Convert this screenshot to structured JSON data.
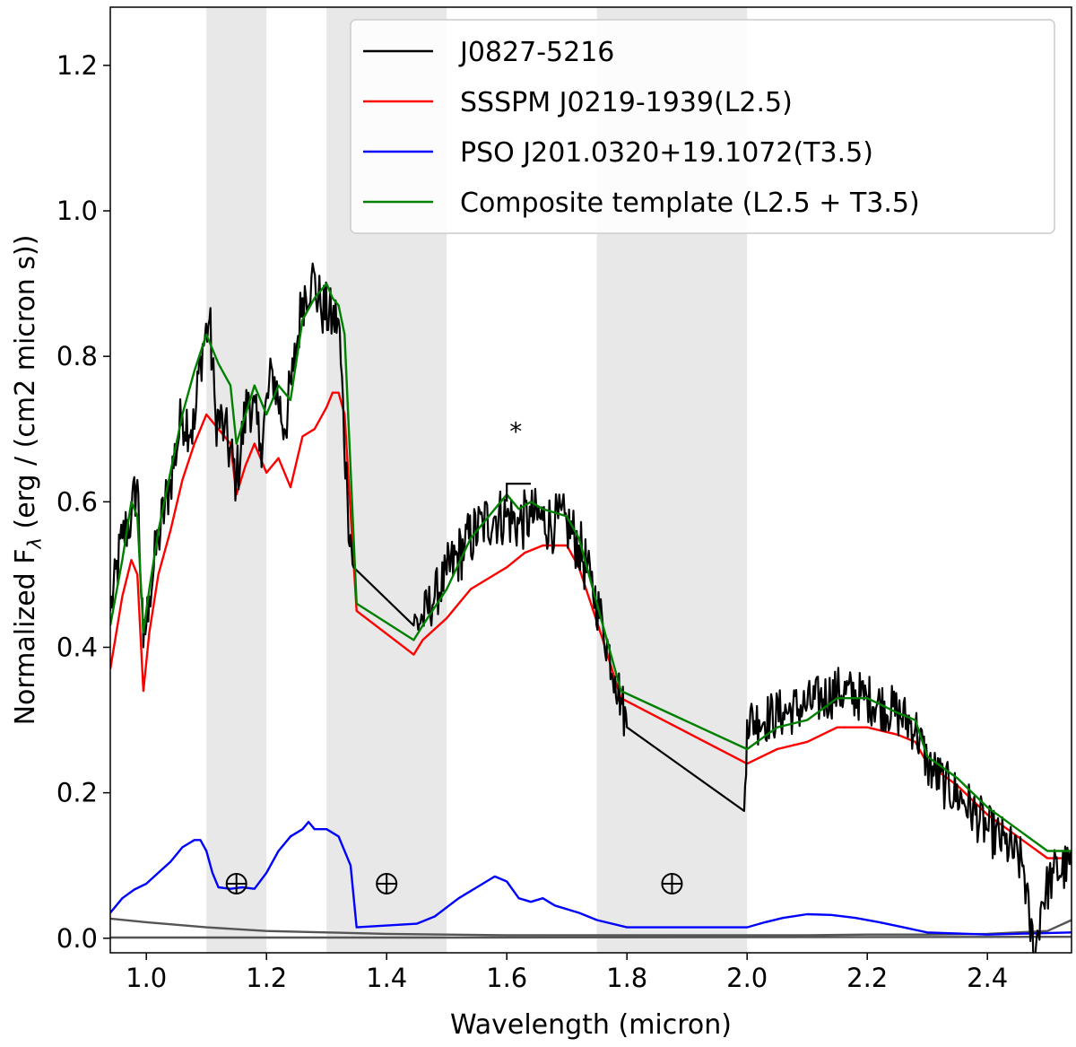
{
  "chart_data": {
    "type": "line",
    "xlabel": "Wavelength (micron)",
    "ylabel_parts": [
      "Normalized F",
      "λ",
      " (erg / (cm2 micron s))"
    ],
    "xlim": [
      0.94,
      2.54
    ],
    "ylim": [
      -0.02,
      1.28
    ],
    "x_ticks": [
      1.0,
      1.2,
      1.4,
      1.6,
      1.8,
      2.0,
      2.2,
      2.4
    ],
    "x_tick_labels": [
      "1.0",
      "1.2",
      "1.4",
      "1.6",
      "1.8",
      "2.0",
      "2.2",
      "2.4"
    ],
    "y_ticks": [
      0.0,
      0.2,
      0.4,
      0.6,
      0.8,
      1.0,
      1.2
    ],
    "y_tick_labels": [
      "0.0",
      "0.2",
      "0.4",
      "0.6",
      "0.8",
      "1.0",
      "1.2"
    ],
    "shaded_regions": [
      [
        1.1,
        1.2
      ],
      [
        1.3,
        1.5
      ],
      [
        1.75,
        2.0
      ]
    ],
    "shade_color": "#e8e8e8",
    "telluric_markers": [
      {
        "symbol": "⊕",
        "x": 1.15,
        "y": 0.075
      },
      {
        "symbol": "⊕",
        "x": 1.4,
        "y": 0.075
      },
      {
        "symbol": "⊕",
        "x": 1.875,
        "y": 0.075
      }
    ],
    "annotation": {
      "text": "*",
      "x": 1.615,
      "y": 0.685,
      "bracket": [
        [
          1.6,
          0.6
        ],
        [
          1.6,
          0.625
        ],
        [
          1.64,
          0.625
        ]
      ]
    },
    "legend": {
      "position": "upper right"
    },
    "series": [
      {
        "name": "J0827-5216",
        "color": "#000000",
        "noisy": true,
        "points": [
          [
            0.94,
            0.45
          ],
          [
            0.96,
            0.55
          ],
          [
            0.975,
            0.58
          ],
          [
            0.985,
            0.63
          ],
          [
            0.995,
            0.4
          ],
          [
            1.005,
            0.47
          ],
          [
            1.02,
            0.55
          ],
          [
            1.04,
            0.63
          ],
          [
            1.06,
            0.72
          ],
          [
            1.08,
            0.7
          ],
          [
            1.09,
            0.8
          ],
          [
            1.105,
            0.85
          ],
          [
            1.115,
            0.72
          ],
          [
            1.13,
            0.7
          ],
          [
            1.15,
            0.63
          ],
          [
            1.17,
            0.75
          ],
          [
            1.19,
            0.68
          ],
          [
            1.21,
            0.78
          ],
          [
            1.23,
            0.7
          ],
          [
            1.245,
            0.78
          ],
          [
            1.26,
            0.88
          ],
          [
            1.275,
            0.91
          ],
          [
            1.29,
            0.87
          ],
          [
            1.31,
            0.85
          ],
          [
            1.32,
            0.85
          ],
          [
            1.335,
            0.6
          ],
          [
            1.345,
            0.51
          ],
          [
            1.445,
            0.43
          ],
          [
            1.46,
            0.44
          ],
          [
            1.48,
            0.47
          ],
          [
            1.5,
            0.5
          ],
          [
            1.53,
            0.54
          ],
          [
            1.56,
            0.57
          ],
          [
            1.58,
            0.58
          ],
          [
            1.6,
            0.58
          ],
          [
            1.62,
            0.57
          ],
          [
            1.64,
            0.58
          ],
          [
            1.66,
            0.575
          ],
          [
            1.68,
            0.57
          ],
          [
            1.7,
            0.57
          ],
          [
            1.72,
            0.54
          ],
          [
            1.74,
            0.49
          ],
          [
            1.76,
            0.43
          ],
          [
            1.78,
            0.36
          ],
          [
            1.79,
            0.33
          ],
          [
            1.8,
            0.29
          ],
          [
            1.995,
            0.175
          ],
          [
            2.0,
            0.3
          ],
          [
            2.02,
            0.3
          ],
          [
            2.06,
            0.31
          ],
          [
            2.1,
            0.32
          ],
          [
            2.15,
            0.34
          ],
          [
            2.2,
            0.33
          ],
          [
            2.25,
            0.31
          ],
          [
            2.28,
            0.29
          ],
          [
            2.3,
            0.24
          ],
          [
            2.33,
            0.21
          ],
          [
            2.36,
            0.19
          ],
          [
            2.4,
            0.15
          ],
          [
            2.43,
            0.13
          ],
          [
            2.46,
            0.1
          ],
          [
            2.47,
            0.02
          ],
          [
            2.48,
            -0.02
          ],
          [
            2.49,
            0.05
          ],
          [
            2.51,
            0.09
          ],
          [
            2.54,
            0.1
          ]
        ]
      },
      {
        "name": "SSSPM J0219-1939(L2.5)",
        "color": "#ff0000",
        "noisy": false,
        "points": [
          [
            0.94,
            0.37
          ],
          [
            0.96,
            0.47
          ],
          [
            0.975,
            0.52
          ],
          [
            0.985,
            0.5
          ],
          [
            0.995,
            0.34
          ],
          [
            1.005,
            0.42
          ],
          [
            1.02,
            0.5
          ],
          [
            1.04,
            0.56
          ],
          [
            1.06,
            0.63
          ],
          [
            1.08,
            0.68
          ],
          [
            1.1,
            0.72
          ],
          [
            1.12,
            0.7
          ],
          [
            1.14,
            0.68
          ],
          [
            1.15,
            0.61
          ],
          [
            1.165,
            0.65
          ],
          [
            1.18,
            0.68
          ],
          [
            1.2,
            0.64
          ],
          [
            1.22,
            0.66
          ],
          [
            1.24,
            0.62
          ],
          [
            1.26,
            0.69
          ],
          [
            1.28,
            0.7
          ],
          [
            1.3,
            0.73
          ],
          [
            1.31,
            0.75
          ],
          [
            1.32,
            0.75
          ],
          [
            1.33,
            0.72
          ],
          [
            1.35,
            0.45
          ],
          [
            1.445,
            0.39
          ],
          [
            1.46,
            0.41
          ],
          [
            1.5,
            0.44
          ],
          [
            1.54,
            0.48
          ],
          [
            1.58,
            0.5
          ],
          [
            1.6,
            0.51
          ],
          [
            1.63,
            0.53
          ],
          [
            1.66,
            0.54
          ],
          [
            1.7,
            0.54
          ],
          [
            1.72,
            0.51
          ],
          [
            1.74,
            0.46
          ],
          [
            1.76,
            0.41
          ],
          [
            1.79,
            0.33
          ],
          [
            2.0,
            0.24
          ],
          [
            2.05,
            0.26
          ],
          [
            2.1,
            0.27
          ],
          [
            2.15,
            0.29
          ],
          [
            2.2,
            0.29
          ],
          [
            2.25,
            0.28
          ],
          [
            2.28,
            0.27
          ],
          [
            2.3,
            0.24
          ],
          [
            2.35,
            0.21
          ],
          [
            2.4,
            0.17
          ],
          [
            2.45,
            0.14
          ],
          [
            2.5,
            0.11
          ],
          [
            2.54,
            0.11
          ]
        ]
      },
      {
        "name": "PSO J201.0320+19.1072(T3.5)",
        "color": "#0000ff",
        "noisy": false,
        "points": [
          [
            0.94,
            0.035
          ],
          [
            0.96,
            0.055
          ],
          [
            0.98,
            0.067
          ],
          [
            1.0,
            0.075
          ],
          [
            1.02,
            0.09
          ],
          [
            1.04,
            0.105
          ],
          [
            1.06,
            0.125
          ],
          [
            1.08,
            0.135
          ],
          [
            1.09,
            0.135
          ],
          [
            1.1,
            0.12
          ],
          [
            1.11,
            0.09
          ],
          [
            1.12,
            0.07
          ],
          [
            1.14,
            0.068
          ],
          [
            1.16,
            0.07
          ],
          [
            1.18,
            0.068
          ],
          [
            1.2,
            0.09
          ],
          [
            1.22,
            0.12
          ],
          [
            1.24,
            0.14
          ],
          [
            1.26,
            0.15
          ],
          [
            1.27,
            0.16
          ],
          [
            1.28,
            0.15
          ],
          [
            1.3,
            0.15
          ],
          [
            1.32,
            0.14
          ],
          [
            1.34,
            0.1
          ],
          [
            1.35,
            0.015
          ],
          [
            1.45,
            0.02
          ],
          [
            1.48,
            0.03
          ],
          [
            1.52,
            0.055
          ],
          [
            1.56,
            0.075
          ],
          [
            1.58,
            0.085
          ],
          [
            1.6,
            0.078
          ],
          [
            1.62,
            0.055
          ],
          [
            1.64,
            0.05
          ],
          [
            1.66,
            0.055
          ],
          [
            1.68,
            0.045
          ],
          [
            1.7,
            0.04
          ],
          [
            1.72,
            0.035
          ],
          [
            1.75,
            0.025
          ],
          [
            1.8,
            0.015
          ],
          [
            2.0,
            0.015
          ],
          [
            2.03,
            0.022
          ],
          [
            2.06,
            0.028
          ],
          [
            2.1,
            0.033
          ],
          [
            2.14,
            0.032
          ],
          [
            2.18,
            0.028
          ],
          [
            2.22,
            0.022
          ],
          [
            2.26,
            0.015
          ],
          [
            2.3,
            0.008
          ],
          [
            2.4,
            0.005
          ],
          [
            2.54,
            0.008
          ]
        ]
      },
      {
        "name": "Composite template (L2.5 + T3.5)",
        "color": "#008000",
        "noisy": false,
        "points": [
          [
            0.94,
            0.43
          ],
          [
            0.96,
            0.52
          ],
          [
            0.975,
            0.6
          ],
          [
            0.985,
            0.58
          ],
          [
            0.995,
            0.42
          ],
          [
            1.005,
            0.48
          ],
          [
            1.02,
            0.56
          ],
          [
            1.04,
            0.64
          ],
          [
            1.06,
            0.72
          ],
          [
            1.08,
            0.78
          ],
          [
            1.1,
            0.83
          ],
          [
            1.12,
            0.79
          ],
          [
            1.14,
            0.76
          ],
          [
            1.15,
            0.68
          ],
          [
            1.165,
            0.72
          ],
          [
            1.18,
            0.76
          ],
          [
            1.2,
            0.72
          ],
          [
            1.22,
            0.76
          ],
          [
            1.24,
            0.74
          ],
          [
            1.26,
            0.85
          ],
          [
            1.28,
            0.88
          ],
          [
            1.3,
            0.9
          ],
          [
            1.31,
            0.88
          ],
          [
            1.32,
            0.87
          ],
          [
            1.33,
            0.83
          ],
          [
            1.35,
            0.46
          ],
          [
            1.445,
            0.41
          ],
          [
            1.46,
            0.43
          ],
          [
            1.5,
            0.48
          ],
          [
            1.54,
            0.55
          ],
          [
            1.58,
            0.59
          ],
          [
            1.6,
            0.61
          ],
          [
            1.62,
            0.59
          ],
          [
            1.64,
            0.6
          ],
          [
            1.66,
            0.59
          ],
          [
            1.7,
            0.58
          ],
          [
            1.72,
            0.55
          ],
          [
            1.74,
            0.49
          ],
          [
            1.76,
            0.43
          ],
          [
            1.79,
            0.34
          ],
          [
            2.0,
            0.26
          ],
          [
            2.05,
            0.29
          ],
          [
            2.1,
            0.3
          ],
          [
            2.15,
            0.33
          ],
          [
            2.2,
            0.33
          ],
          [
            2.25,
            0.31
          ],
          [
            2.28,
            0.3
          ],
          [
            2.3,
            0.25
          ],
          [
            2.35,
            0.22
          ],
          [
            2.4,
            0.18
          ],
          [
            2.45,
            0.15
          ],
          [
            2.5,
            0.12
          ],
          [
            2.54,
            0.12
          ]
        ]
      },
      {
        "name": "",
        "color": "#555555",
        "noisy": false,
        "points": [
          [
            0.94,
            0.027
          ],
          [
            1.0,
            0.022
          ],
          [
            1.1,
            0.015
          ],
          [
            1.2,
            0.01
          ],
          [
            1.3,
            0.008
          ],
          [
            1.4,
            0.006
          ],
          [
            1.5,
            0.005
          ],
          [
            1.6,
            0.004
          ],
          [
            1.8,
            0.004
          ],
          [
            2.0,
            0.004
          ],
          [
            2.1,
            0.004
          ],
          [
            2.2,
            0.005
          ],
          [
            2.3,
            0.005
          ],
          [
            2.4,
            0.006
          ],
          [
            2.5,
            0.01
          ],
          [
            2.54,
            0.025
          ]
        ]
      },
      {
        "name": "",
        "color": "#555555",
        "noisy": false,
        "points": [
          [
            0.94,
            0.001
          ],
          [
            1.5,
            0.001
          ],
          [
            2.54,
            0.002
          ]
        ]
      }
    ]
  }
}
